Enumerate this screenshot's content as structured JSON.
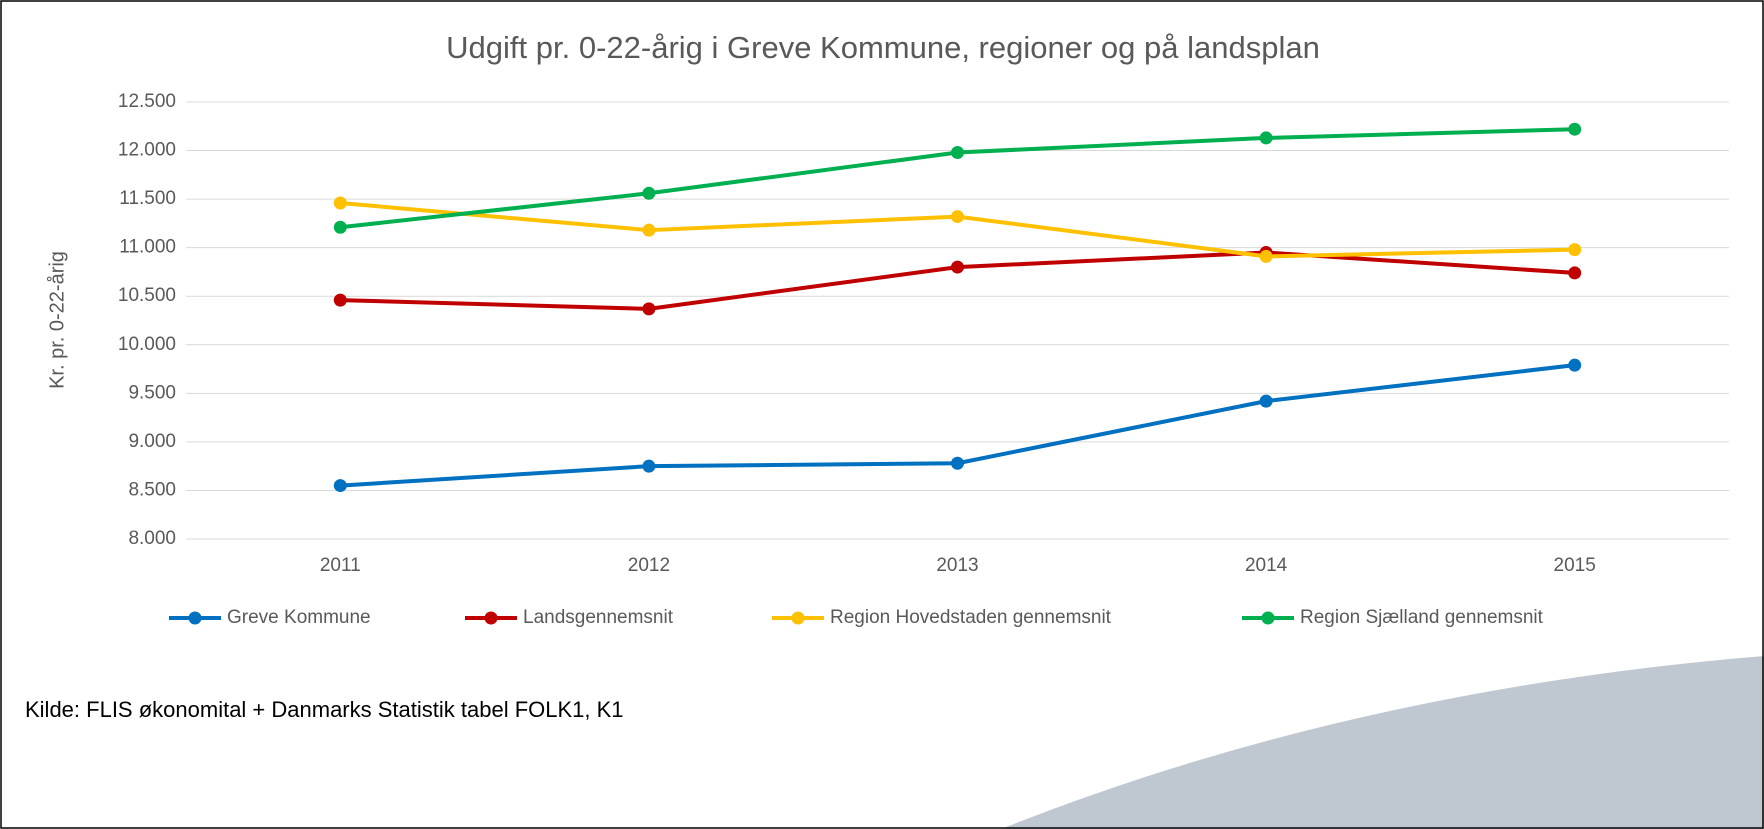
{
  "chart_data": {
    "type": "line",
    "title": "Udgift pr. 0-22-årig i Greve Kommune, regioner og på landsplan",
    "y_label": "Kr. pr. 0-22-årig",
    "source": "Kilde: FLIS økonomital + Danmarks Statistik tabel FOLK1, K1",
    "categories": [
      "2011",
      "2012",
      "2013",
      "2014",
      "2015"
    ],
    "series": [
      {
        "name": "Greve Kommune",
        "color": "#0070c0",
        "values": [
          8550,
          8750,
          8780,
          9420,
          9790
        ]
      },
      {
        "name": "Landsgennemsnit",
        "color": "#c00000",
        "values": [
          10460,
          10370,
          10800,
          10950,
          10740
        ]
      },
      {
        "name": "Region Hovedstaden gennemsnit",
        "color": "#ffc000",
        "values": [
          11460,
          11180,
          11320,
          10910,
          10980
        ]
      },
      {
        "name": "Region Sjælland gennemsnit",
        "color": "#00b050",
        "values": [
          11210,
          11560,
          11980,
          12130,
          12220
        ]
      }
    ],
    "ylim": [
      8000,
      12500
    ],
    "yticks": [
      {
        "value": 8000,
        "label": "8.000"
      },
      {
        "value": 8500,
        "label": "8.500"
      },
      {
        "value": 9000,
        "label": "9.000"
      },
      {
        "value": 9500,
        "label": "9.500"
      },
      {
        "value": 10000,
        "label": "10.000"
      },
      {
        "value": 10500,
        "label": "10.500"
      },
      {
        "value": 11000,
        "label": "11.000"
      },
      {
        "value": 11500,
        "label": "11.500"
      },
      {
        "value": 12000,
        "label": "12.000"
      },
      {
        "value": 12500,
        "label": "12.500"
      }
    ],
    "grid": true,
    "legend": "bottom"
  }
}
